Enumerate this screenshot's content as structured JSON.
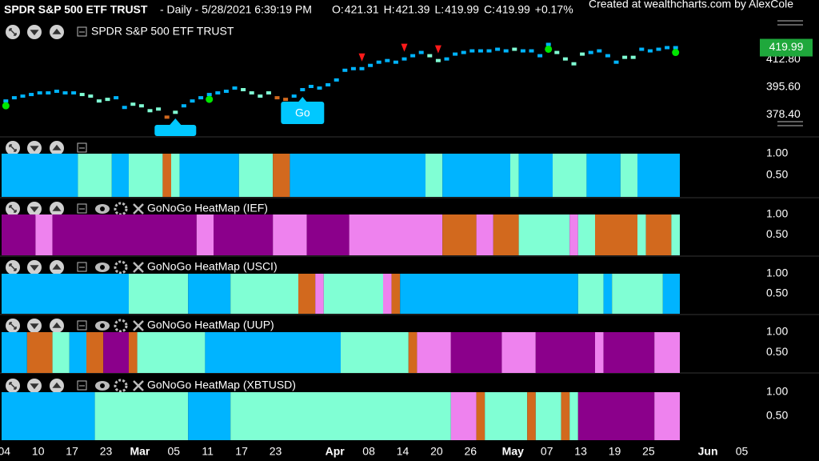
{
  "header": {
    "title": "SPDR S&P 500 ETF TRUST",
    "info": "- Daily - 5/28/2021 6:39:19 PM",
    "ohlc": [
      {
        "label": "O:",
        "value": "421.31"
      },
      {
        "label": "H:",
        "value": "421.39"
      },
      {
        "label": "L:",
        "value": "419.99"
      },
      {
        "label": "C:",
        "value": "419.99"
      }
    ],
    "change": "+0.17%",
    "credit": "Created at wealthcharts.com by AlexCole"
  },
  "x_axis": {
    "xticks": [
      {
        "value": 0,
        "label": "04"
      },
      {
        "value": 4,
        "label": "10"
      },
      {
        "value": 8,
        "label": "17"
      },
      {
        "value": 12,
        "label": "23"
      },
      {
        "value": 16,
        "label": "Mar"
      },
      {
        "value": 20,
        "label": "05"
      },
      {
        "value": 24,
        "label": "11"
      },
      {
        "value": 28,
        "label": "17"
      },
      {
        "value": 32,
        "label": "23"
      },
      {
        "value": 39,
        "label": "Apr"
      },
      {
        "value": 43,
        "label": "08"
      },
      {
        "value": 47,
        "label": "14"
      },
      {
        "value": 51,
        "label": "20"
      },
      {
        "value": 55,
        "label": "26"
      },
      {
        "value": 60,
        "label": "May"
      },
      {
        "value": 64,
        "label": "07"
      },
      {
        "value": 68,
        "label": "13"
      },
      {
        "value": 72,
        "label": "19"
      },
      {
        "value": 76,
        "label": "25"
      },
      {
        "value": 83,
        "label": "Jun"
      },
      {
        "value": 87,
        "label": "05"
      }
    ]
  },
  "chart_data": [
    {
      "type": "price",
      "title": "SPDR S&P 500 ETF TRUST",
      "values": [
        387,
        389,
        390,
        391,
        392,
        392,
        393,
        392,
        392,
        391,
        390,
        387,
        388,
        389,
        383,
        385,
        384,
        381,
        382,
        377,
        380,
        384,
        387,
        389,
        391,
        392,
        393,
        395,
        394,
        392,
        390,
        392,
        389,
        388,
        390,
        394,
        396,
        395,
        397,
        400,
        406,
        407,
        407,
        409,
        411,
        412,
        411,
        413,
        415,
        417,
        415,
        412,
        413,
        416,
        417,
        418,
        418,
        418,
        419,
        418,
        419,
        418,
        418,
        415,
        422,
        417,
        413,
        410,
        416,
        417,
        418,
        415,
        411,
        414,
        414,
        419,
        418,
        419,
        420,
        419.99
      ],
      "last_value": {
        "value": 419.99,
        "label": "419.99"
      },
      "ylim": [
        365.3,
        435.6
      ],
      "yticks": [
        {
          "value": 378.4,
          "label": "378.40"
        },
        {
          "value": 395.6,
          "label": "395.60"
        },
        {
          "value": 412.8,
          "label": "412.80"
        }
      ],
      "go_label": "Go",
      "go_index": 35,
      "go_color": "#00c8ff",
      "go_dots": [
        0,
        24,
        64,
        79
      ],
      "dot_color": "#00e600",
      "nogo_triangles": [
        42,
        47,
        51
      ],
      "triangle_color": "#ff1a1a"
    },
    {
      "type": "heatmap",
      "ylim": [
        0,
        1
      ],
      "yticks": [
        {
          "value": 1,
          "label": "1.00"
        },
        {
          "value": 0.5,
          "label": "0.50"
        }
      ],
      "cells": [
        {
          "color": "#00b4ff",
          "days": 9
        },
        {
          "color": "#80ffd4",
          "days": 4
        },
        {
          "color": "#00b4ff",
          "days": 2
        },
        {
          "color": "#80ffd4",
          "days": 4
        },
        {
          "color": "#d2691e",
          "days": 1
        },
        {
          "color": "#80ffd4",
          "days": 1
        },
        {
          "color": "#00b4ff",
          "days": 7
        },
        {
          "color": "#80ffd4",
          "days": 4
        },
        {
          "color": "#d2691e",
          "days": 2
        },
        {
          "color": "#00b4ff",
          "days": 16
        },
        {
          "color": "#80ffd4",
          "days": 2
        },
        {
          "color": "#00b4ff",
          "days": 8
        },
        {
          "color": "#80ffd4",
          "days": 1
        },
        {
          "color": "#00b4ff",
          "days": 4
        },
        {
          "color": "#80ffd4",
          "days": 4
        },
        {
          "color": "#00b4ff",
          "days": 4
        },
        {
          "color": "#80ffd4",
          "days": 2
        },
        {
          "color": "#00b4ff",
          "days": 5
        }
      ]
    },
    {
      "type": "heatmap",
      "title": "GoNoGo HeatMap (IEF)",
      "ylim": [
        0,
        1
      ],
      "yticks": [
        {
          "value": 1,
          "label": "1.00"
        },
        {
          "value": 0.5,
          "label": "0.50"
        }
      ],
      "cells": [
        {
          "color": "#8b008b",
          "days": 4
        },
        {
          "color": "#ee82ee",
          "days": 2
        },
        {
          "color": "#8b008b",
          "days": 17
        },
        {
          "color": "#ee82ee",
          "days": 2
        },
        {
          "color": "#8b008b",
          "days": 7
        },
        {
          "color": "#ee82ee",
          "days": 4
        },
        {
          "color": "#8b008b",
          "days": 5
        },
        {
          "color": "#ee82ee",
          "days": 11
        },
        {
          "color": "#d2691e",
          "days": 4
        },
        {
          "color": "#ee82ee",
          "days": 2
        },
        {
          "color": "#d2691e",
          "days": 3
        },
        {
          "color": "#80ffd4",
          "days": 6
        },
        {
          "color": "#ee82ee",
          "days": 1
        },
        {
          "color": "#80ffd4",
          "days": 2
        },
        {
          "color": "#d2691e",
          "days": 5
        },
        {
          "color": "#80ffd4",
          "days": 1
        },
        {
          "color": "#d2691e",
          "days": 3
        },
        {
          "color": "#80ffd4",
          "days": 1
        }
      ]
    },
    {
      "type": "heatmap",
      "title": "GoNoGo HeatMap (USCI)",
      "ylim": [
        0,
        1
      ],
      "yticks": [
        {
          "value": 1,
          "label": "1.00"
        },
        {
          "value": 0.5,
          "label": "0.50"
        }
      ],
      "cells": [
        {
          "color": "#00b4ff",
          "days": 15
        },
        {
          "color": "#80ffd4",
          "days": 7
        },
        {
          "color": "#00b4ff",
          "days": 5
        },
        {
          "color": "#80ffd4",
          "days": 8
        },
        {
          "color": "#d2691e",
          "days": 2
        },
        {
          "color": "#ee82ee",
          "days": 1
        },
        {
          "color": "#80ffd4",
          "days": 7
        },
        {
          "color": "#ee82ee",
          "days": 1
        },
        {
          "color": "#d2691e",
          "days": 1
        },
        {
          "color": "#00b4ff",
          "days": 21
        },
        {
          "color": "#80ffd4",
          "days": 3
        },
        {
          "color": "#00b4ff",
          "days": 1
        },
        {
          "color": "#80ffd4",
          "days": 6
        },
        {
          "color": "#00b4ff",
          "days": 2
        }
      ]
    },
    {
      "type": "heatmap",
      "title": "GoNoGo HeatMap (UUP)",
      "ylim": [
        0,
        1
      ],
      "yticks": [
        {
          "value": 1,
          "label": "1.00"
        },
        {
          "value": 0.5,
          "label": "0.50"
        }
      ],
      "cells": [
        {
          "color": "#00b4ff",
          "days": 3
        },
        {
          "color": "#d2691e",
          "days": 3
        },
        {
          "color": "#80ffd4",
          "days": 2
        },
        {
          "color": "#00b4ff",
          "days": 2
        },
        {
          "color": "#d2691e",
          "days": 2
        },
        {
          "color": "#8b008b",
          "days": 3
        },
        {
          "color": "#d2691e",
          "days": 1
        },
        {
          "color": "#80ffd4",
          "days": 8
        },
        {
          "color": "#00b4ff",
          "days": 16
        },
        {
          "color": "#80ffd4",
          "days": 8
        },
        {
          "color": "#d2691e",
          "days": 1
        },
        {
          "color": "#ee82ee",
          "days": 4
        },
        {
          "color": "#8b008b",
          "days": 6
        },
        {
          "color": "#ee82ee",
          "days": 4
        },
        {
          "color": "#8b008b",
          "days": 7
        },
        {
          "color": "#ee82ee",
          "days": 1
        },
        {
          "color": "#8b008b",
          "days": 6
        },
        {
          "color": "#ee82ee",
          "days": 3
        }
      ]
    },
    {
      "type": "heatmap",
      "title": "GoNoGo HeatMap (XBTUSD)",
      "ylim": [
        0,
        1
      ],
      "yticks": [
        {
          "value": 1,
          "label": "1.00"
        },
        {
          "value": 0.5,
          "label": "0.50"
        }
      ],
      "cells": [
        {
          "color": "#00b4ff",
          "days": 11
        },
        {
          "color": "#80ffd4",
          "days": 11
        },
        {
          "color": "#00b4ff",
          "days": 5
        },
        {
          "color": "#80ffd4",
          "days": 26
        },
        {
          "color": "#ee82ee",
          "days": 3
        },
        {
          "color": "#d2691e",
          "days": 1
        },
        {
          "color": "#80ffd4",
          "days": 5
        },
        {
          "color": "#d2691e",
          "days": 1
        },
        {
          "color": "#80ffd4",
          "days": 3
        },
        {
          "color": "#d2691e",
          "days": 1
        },
        {
          "color": "#80ffd4",
          "days": 1
        },
        {
          "color": "#8b008b",
          "days": 9
        },
        {
          "color": "#ee82ee",
          "days": 3
        }
      ]
    }
  ]
}
